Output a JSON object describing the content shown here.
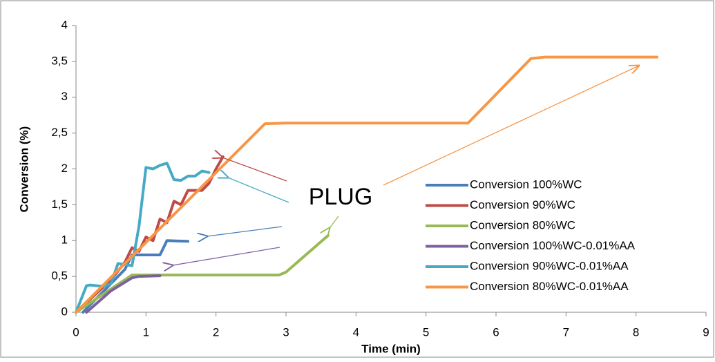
{
  "chart_data": {
    "type": "line",
    "xlabel": "Time (min)",
    "ylabel": "Conversion (%)",
    "annotation": "PLUG",
    "xlim": [
      0,
      9
    ],
    "xticks": [
      0,
      1,
      2,
      3,
      4,
      5,
      6,
      7,
      8,
      9
    ],
    "ylim": [
      0,
      4
    ],
    "yticks": [
      0,
      {
        "value": 0.5,
        "label": "0,5"
      },
      1,
      {
        "value": 1.5,
        "label": "1,5"
      },
      2,
      {
        "value": 2.5,
        "label": "2,5"
      },
      3,
      {
        "value": 3.5,
        "label": "3,5"
      },
      4
    ],
    "grid": false,
    "legend": "right",
    "series": [
      {
        "name": "Conversion 100%WC",
        "color": "#4a7ebb",
        "x": [
          0.1,
          0.5,
          0.7,
          0.8,
          1.2,
          1.3,
          1.6
        ],
        "values": [
          0,
          0.4,
          0.6,
          0.8,
          0.8,
          1.0,
          0.99
        ]
      },
      {
        "name": "Conversion 90%WC",
        "color": "#be4b48",
        "x": [
          0,
          0.5,
          0.7,
          0.8,
          0.9,
          1.0,
          1.1,
          1.2,
          1.3,
          1.4,
          1.5,
          1.6,
          1.8,
          1.9,
          2.0,
          2.1
        ],
        "values": [
          0,
          0.45,
          0.7,
          0.9,
          0.85,
          1.05,
          1.0,
          1.3,
          1.25,
          1.55,
          1.5,
          1.7,
          1.7,
          1.8,
          2.0,
          2.17
        ]
      },
      {
        "name": "Conversion 80%WC",
        "color": "#98b954",
        "x": [
          0,
          0.8,
          1.0,
          2.9,
          3.0,
          3.6
        ],
        "values": [
          0,
          0.52,
          0.52,
          0.52,
          0.56,
          1.07
        ]
      },
      {
        "name": "Conversion 100%WC-0.01%AA",
        "color": "#7d60a0",
        "x": [
          0.15,
          0.5,
          0.8,
          0.9,
          1.2
        ],
        "values": [
          0,
          0.3,
          0.48,
          0.5,
          0.51
        ]
      },
      {
        "name": "Conversion 90%WC-0.01%AA",
        "color": "#46aac5",
        "x": [
          0,
          0.15,
          0.2,
          0.4,
          0.5,
          0.6,
          0.8,
          0.9,
          1.0,
          1.1,
          1.2,
          1.3,
          1.4,
          1.5,
          1.6,
          1.7,
          1.8,
          1.9
        ],
        "values": [
          0,
          0.37,
          0.38,
          0.36,
          0.4,
          0.68,
          0.65,
          1.2,
          2.02,
          2.0,
          2.05,
          2.08,
          1.85,
          1.84,
          1.9,
          1.9,
          1.97,
          1.95
        ]
      },
      {
        "name": "Conversion 80%WC-0.01%AA",
        "color": "#f79646",
        "x": [
          0,
          2.7,
          3.0,
          5.6,
          6.5,
          6.7,
          8.3
        ],
        "values": [
          0,
          2.63,
          2.64,
          2.64,
          3.54,
          3.56,
          3.56
        ]
      }
    ]
  }
}
